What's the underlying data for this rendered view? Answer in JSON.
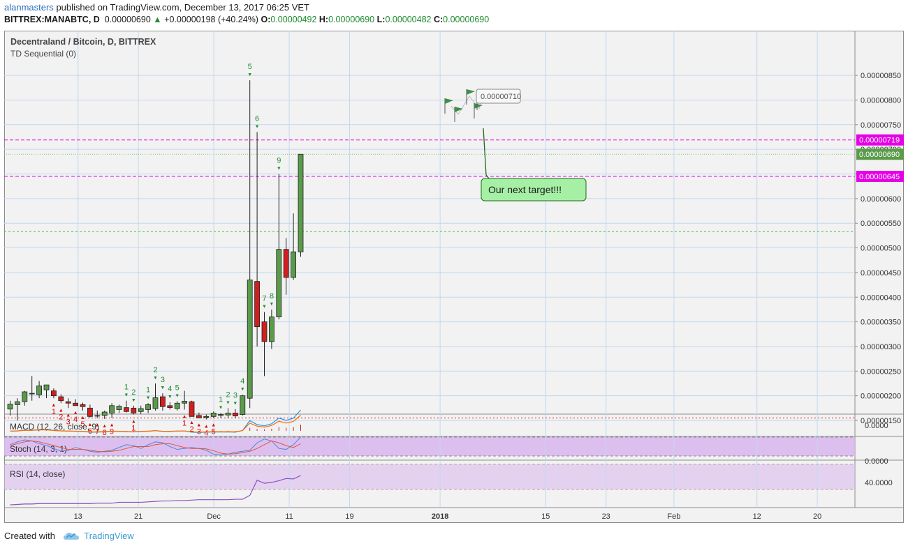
{
  "header": {
    "username": "alanmasters",
    "published_text": "published on TradingView.com, December 13, 2017 06:25 VET",
    "symbol": "BITTREX:MANABTC, D",
    "last": "0.00000690",
    "change_arrow": "▲",
    "change": "+0.00000198 (+40.24%)",
    "open_label": "O:",
    "open": "0.00000492",
    "high_label": "H:",
    "high": "0.00000690",
    "low_label": "L:",
    "low": "0.00000482",
    "close_label": "C:",
    "close": "0.00000690"
  },
  "footer": {
    "created_with": "Created with",
    "brand": "TradingView",
    "logo_icon": "tradingview-cloud-icon"
  },
  "colors": {
    "up": "#5a9b4a",
    "down": "#d11f1f",
    "grid": "#c3d7ee",
    "magenta": "#e600e6",
    "green_line": "#33cc33",
    "red_dotted": "#e60000",
    "td_green": "#1e8c2e",
    "td_red": "#e00000",
    "macd": "#2196f3",
    "signal": "#ff6d00",
    "stoch_k": "#4a8ad9",
    "stoch_d": "#e0573a",
    "rsi": "#8a4fc0",
    "band": "#d8b6ee",
    "callout": "#a6f0a6",
    "flag": "#3f8f4a"
  },
  "chart_data": {
    "type": "candlestick",
    "title": "Decentraland / Bitcoin, D, BITTREX",
    "indicator": "TD Sequential (0)",
    "y_ticks": [
      "0.00000150",
      "0.00000200",
      "0.00000250",
      "0.00000300",
      "0.00000350",
      "0.00000400",
      "0.00000450",
      "0.00000500",
      "0.00000550",
      "0.00000600",
      "0.00000650",
      "0.00000700",
      "0.00000750",
      "0.00000800",
      "0.00000850"
    ],
    "x_ticks": [
      "13",
      "21",
      "Dec",
      "11",
      "19",
      "2018",
      "15",
      "23",
      "Feb",
      "12",
      "20"
    ],
    "candles": [
      {
        "o": 1.73,
        "h": 1.9,
        "l": 1.6,
        "c": 1.83
      },
      {
        "o": 1.82,
        "h": 1.95,
        "l": 1.5,
        "c": 1.88
      },
      {
        "o": 1.88,
        "h": 2.1,
        "l": 1.8,
        "c": 2.08
      },
      {
        "o": 2.05,
        "h": 2.4,
        "l": 1.9,
        "c": 2.05
      },
      {
        "o": 2.02,
        "h": 2.3,
        "l": 1.95,
        "c": 2.2
      },
      {
        "o": 2.12,
        "h": 2.22,
        "l": 1.95,
        "c": 2.22
      },
      {
        "o": 2.1,
        "h": 2.15,
        "l": 1.95,
        "c": 2.0
      },
      {
        "o": 1.98,
        "h": 2.03,
        "l": 1.85,
        "c": 1.9
      },
      {
        "o": 1.88,
        "h": 1.95,
        "l": 1.75,
        "c": 1.85
      },
      {
        "o": 1.85,
        "h": 1.93,
        "l": 1.8,
        "c": 1.8
      },
      {
        "o": 1.82,
        "h": 1.86,
        "l": 1.7,
        "c": 1.78
      },
      {
        "o": 1.75,
        "h": 1.82,
        "l": 1.56,
        "c": 1.58
      },
      {
        "o": 1.6,
        "h": 1.7,
        "l": 1.55,
        "c": 1.6
      },
      {
        "o": 1.6,
        "h": 1.7,
        "l": 1.53,
        "c": 1.67
      },
      {
        "o": 1.65,
        "h": 1.85,
        "l": 1.55,
        "c": 1.8
      },
      {
        "o": 1.72,
        "h": 1.82,
        "l": 1.65,
        "c": 1.79
      },
      {
        "o": 1.76,
        "h": 1.9,
        "l": 1.66,
        "c": 1.68
      },
      {
        "o": 1.75,
        "h": 1.8,
        "l": 1.62,
        "c": 1.65
      },
      {
        "o": 1.68,
        "h": 1.8,
        "l": 1.63,
        "c": 1.74
      },
      {
        "o": 1.72,
        "h": 1.85,
        "l": 1.65,
        "c": 1.82
      },
      {
        "o": 1.74,
        "h": 2.25,
        "l": 1.7,
        "c": 1.96
      },
      {
        "o": 1.98,
        "h": 2.05,
        "l": 1.7,
        "c": 1.78
      },
      {
        "o": 1.8,
        "h": 1.87,
        "l": 1.72,
        "c": 1.76
      },
      {
        "o": 1.74,
        "h": 1.89,
        "l": 1.7,
        "c": 1.85
      },
      {
        "o": 1.85,
        "h": 2.1,
        "l": 1.72,
        "c": 1.89
      },
      {
        "o": 1.88,
        "h": 1.9,
        "l": 1.6,
        "c": 1.58
      },
      {
        "o": 1.6,
        "h": 1.66,
        "l": 1.55,
        "c": 1.55
      },
      {
        "o": 1.56,
        "h": 1.62,
        "l": 1.52,
        "c": 1.58
      },
      {
        "o": 1.58,
        "h": 1.68,
        "l": 1.55,
        "c": 1.65
      },
      {
        "o": 1.6,
        "h": 1.65,
        "l": 1.55,
        "c": 1.62
      },
      {
        "o": 1.61,
        "h": 1.75,
        "l": 1.55,
        "c": 1.65
      },
      {
        "o": 1.65,
        "h": 1.73,
        "l": 1.55,
        "c": 1.59
      },
      {
        "o": 1.62,
        "h": 2.02,
        "l": 1.6,
        "c": 2.0
      },
      {
        "o": 1.95,
        "h": 8.4,
        "l": 1.75,
        "c": 4.35
      },
      {
        "o": 4.32,
        "h": 7.35,
        "l": 3.0,
        "c": 3.4
      },
      {
        "o": 3.5,
        "h": 3.7,
        "l": 2.4,
        "c": 3.1
      },
      {
        "o": 3.1,
        "h": 3.75,
        "l": 2.95,
        "c": 3.6
      },
      {
        "o": 3.6,
        "h": 6.5,
        "l": 3.55,
        "c": 4.97
      },
      {
        "o": 4.97,
        "h": 5.2,
        "l": 4.05,
        "c": 4.4
      },
      {
        "o": 4.4,
        "h": 5.7,
        "l": 4.35,
        "c": 4.92
      },
      {
        "o": 4.92,
        "h": 6.9,
        "l": 4.82,
        "c": 6.9
      }
    ],
    "td_setup": [
      {
        "i": 16,
        "n": "1",
        "dir": "up"
      },
      {
        "i": 17,
        "n": "2",
        "dir": "up"
      },
      {
        "i": 19,
        "n": "1",
        "dir": "up"
      },
      {
        "i": 20,
        "n": "2",
        "dir": "up"
      },
      {
        "i": 21,
        "n": "3",
        "dir": "up"
      },
      {
        "i": 22,
        "n": "4",
        "dir": "up"
      },
      {
        "i": 23,
        "n": "5",
        "dir": "up"
      },
      {
        "i": 29,
        "n": "1",
        "dir": "up"
      },
      {
        "i": 30,
        "n": "2",
        "dir": "up"
      },
      {
        "i": 31,
        "n": "3",
        "dir": "up"
      },
      {
        "i": 32,
        "n": "4",
        "dir": "up"
      },
      {
        "i": 33,
        "n": "5",
        "dir": "up"
      },
      {
        "i": 34,
        "n": "6",
        "dir": "up"
      },
      {
        "i": 35,
        "n": "7",
        "dir": "up"
      },
      {
        "i": 36,
        "n": "8",
        "dir": "up"
      },
      {
        "i": 37,
        "n": "9",
        "dir": "up"
      },
      {
        "i": 6,
        "n": "1",
        "dir": "down"
      },
      {
        "i": 7,
        "n": "2",
        "dir": "down"
      },
      {
        "i": 8,
        "n": "3",
        "dir": "down"
      },
      {
        "i": 9,
        "n": "4",
        "dir": "down"
      },
      {
        "i": 10,
        "n": "5",
        "dir": "down"
      },
      {
        "i": 11,
        "n": "6",
        "dir": "down"
      },
      {
        "i": 12,
        "n": "7",
        "dir": "down"
      },
      {
        "i": 13,
        "n": "8",
        "dir": "down"
      },
      {
        "i": 14,
        "n": "9",
        "dir": "down"
      },
      {
        "i": 17,
        "n": "1",
        "dir": "down"
      },
      {
        "i": 24,
        "n": "1",
        "dir": "down"
      },
      {
        "i": 25,
        "n": "2",
        "dir": "down"
      },
      {
        "i": 26,
        "n": "3",
        "dir": "down"
      },
      {
        "i": 27,
        "n": "4",
        "dir": "down"
      },
      {
        "i": 28,
        "n": "5",
        "dir": "down"
      }
    ],
    "levels": [
      {
        "value": 7.19,
        "label": "0.00000719",
        "style": "magenta-dashed"
      },
      {
        "value": 6.9,
        "label": "0.00000690",
        "style": "green-dotted"
      },
      {
        "value": 6.45,
        "label": "0.00000645",
        "style": "magenta-dashed"
      },
      {
        "value": 5.33,
        "label": "",
        "style": "green-dashed"
      },
      {
        "value": 1.55,
        "label": "",
        "style": "red-dotted"
      }
    ],
    "drawing_label": "0.00000710",
    "callout_text": "Our next target!!!",
    "macd": {
      "label": "MACD (12, 26, close, 9)",
      "tick": "0.0000"
    },
    "stoch": {
      "label": "Stoch (14, 3, 1)",
      "tick": "0.0000",
      "k": [
        60,
        75,
        85,
        80,
        65,
        55,
        40,
        25,
        30,
        45,
        35,
        25,
        20,
        25,
        30,
        45,
        60,
        55,
        40,
        60,
        75,
        70,
        50,
        35,
        40,
        45,
        40,
        30,
        10,
        5,
        10,
        20,
        25,
        30,
        70,
        90,
        80,
        40,
        35,
        60,
        100
      ],
      "d": [
        55,
        65,
        75,
        80,
        75,
        65,
        55,
        45,
        35,
        35,
        35,
        30,
        25,
        22,
        25,
        30,
        40,
        50,
        50,
        50,
        60,
        65,
        65,
        55,
        45,
        40,
        40,
        38,
        28,
        15,
        10,
        12,
        18,
        25,
        40,
        60,
        80,
        70,
        55,
        45,
        65
      ]
    },
    "rsi": {
      "label": "RSI (14, close)",
      "tick": "40.0000",
      "values": [
        3,
        4,
        5,
        5,
        6,
        6,
        6,
        6,
        6,
        6,
        6,
        6,
        7,
        7,
        7,
        9,
        9,
        9,
        9,
        10,
        11,
        12,
        12,
        13,
        13,
        14,
        15,
        15,
        15,
        15,
        15,
        16,
        16,
        25,
        60,
        53,
        55,
        59,
        64,
        63,
        71
      ]
    }
  }
}
